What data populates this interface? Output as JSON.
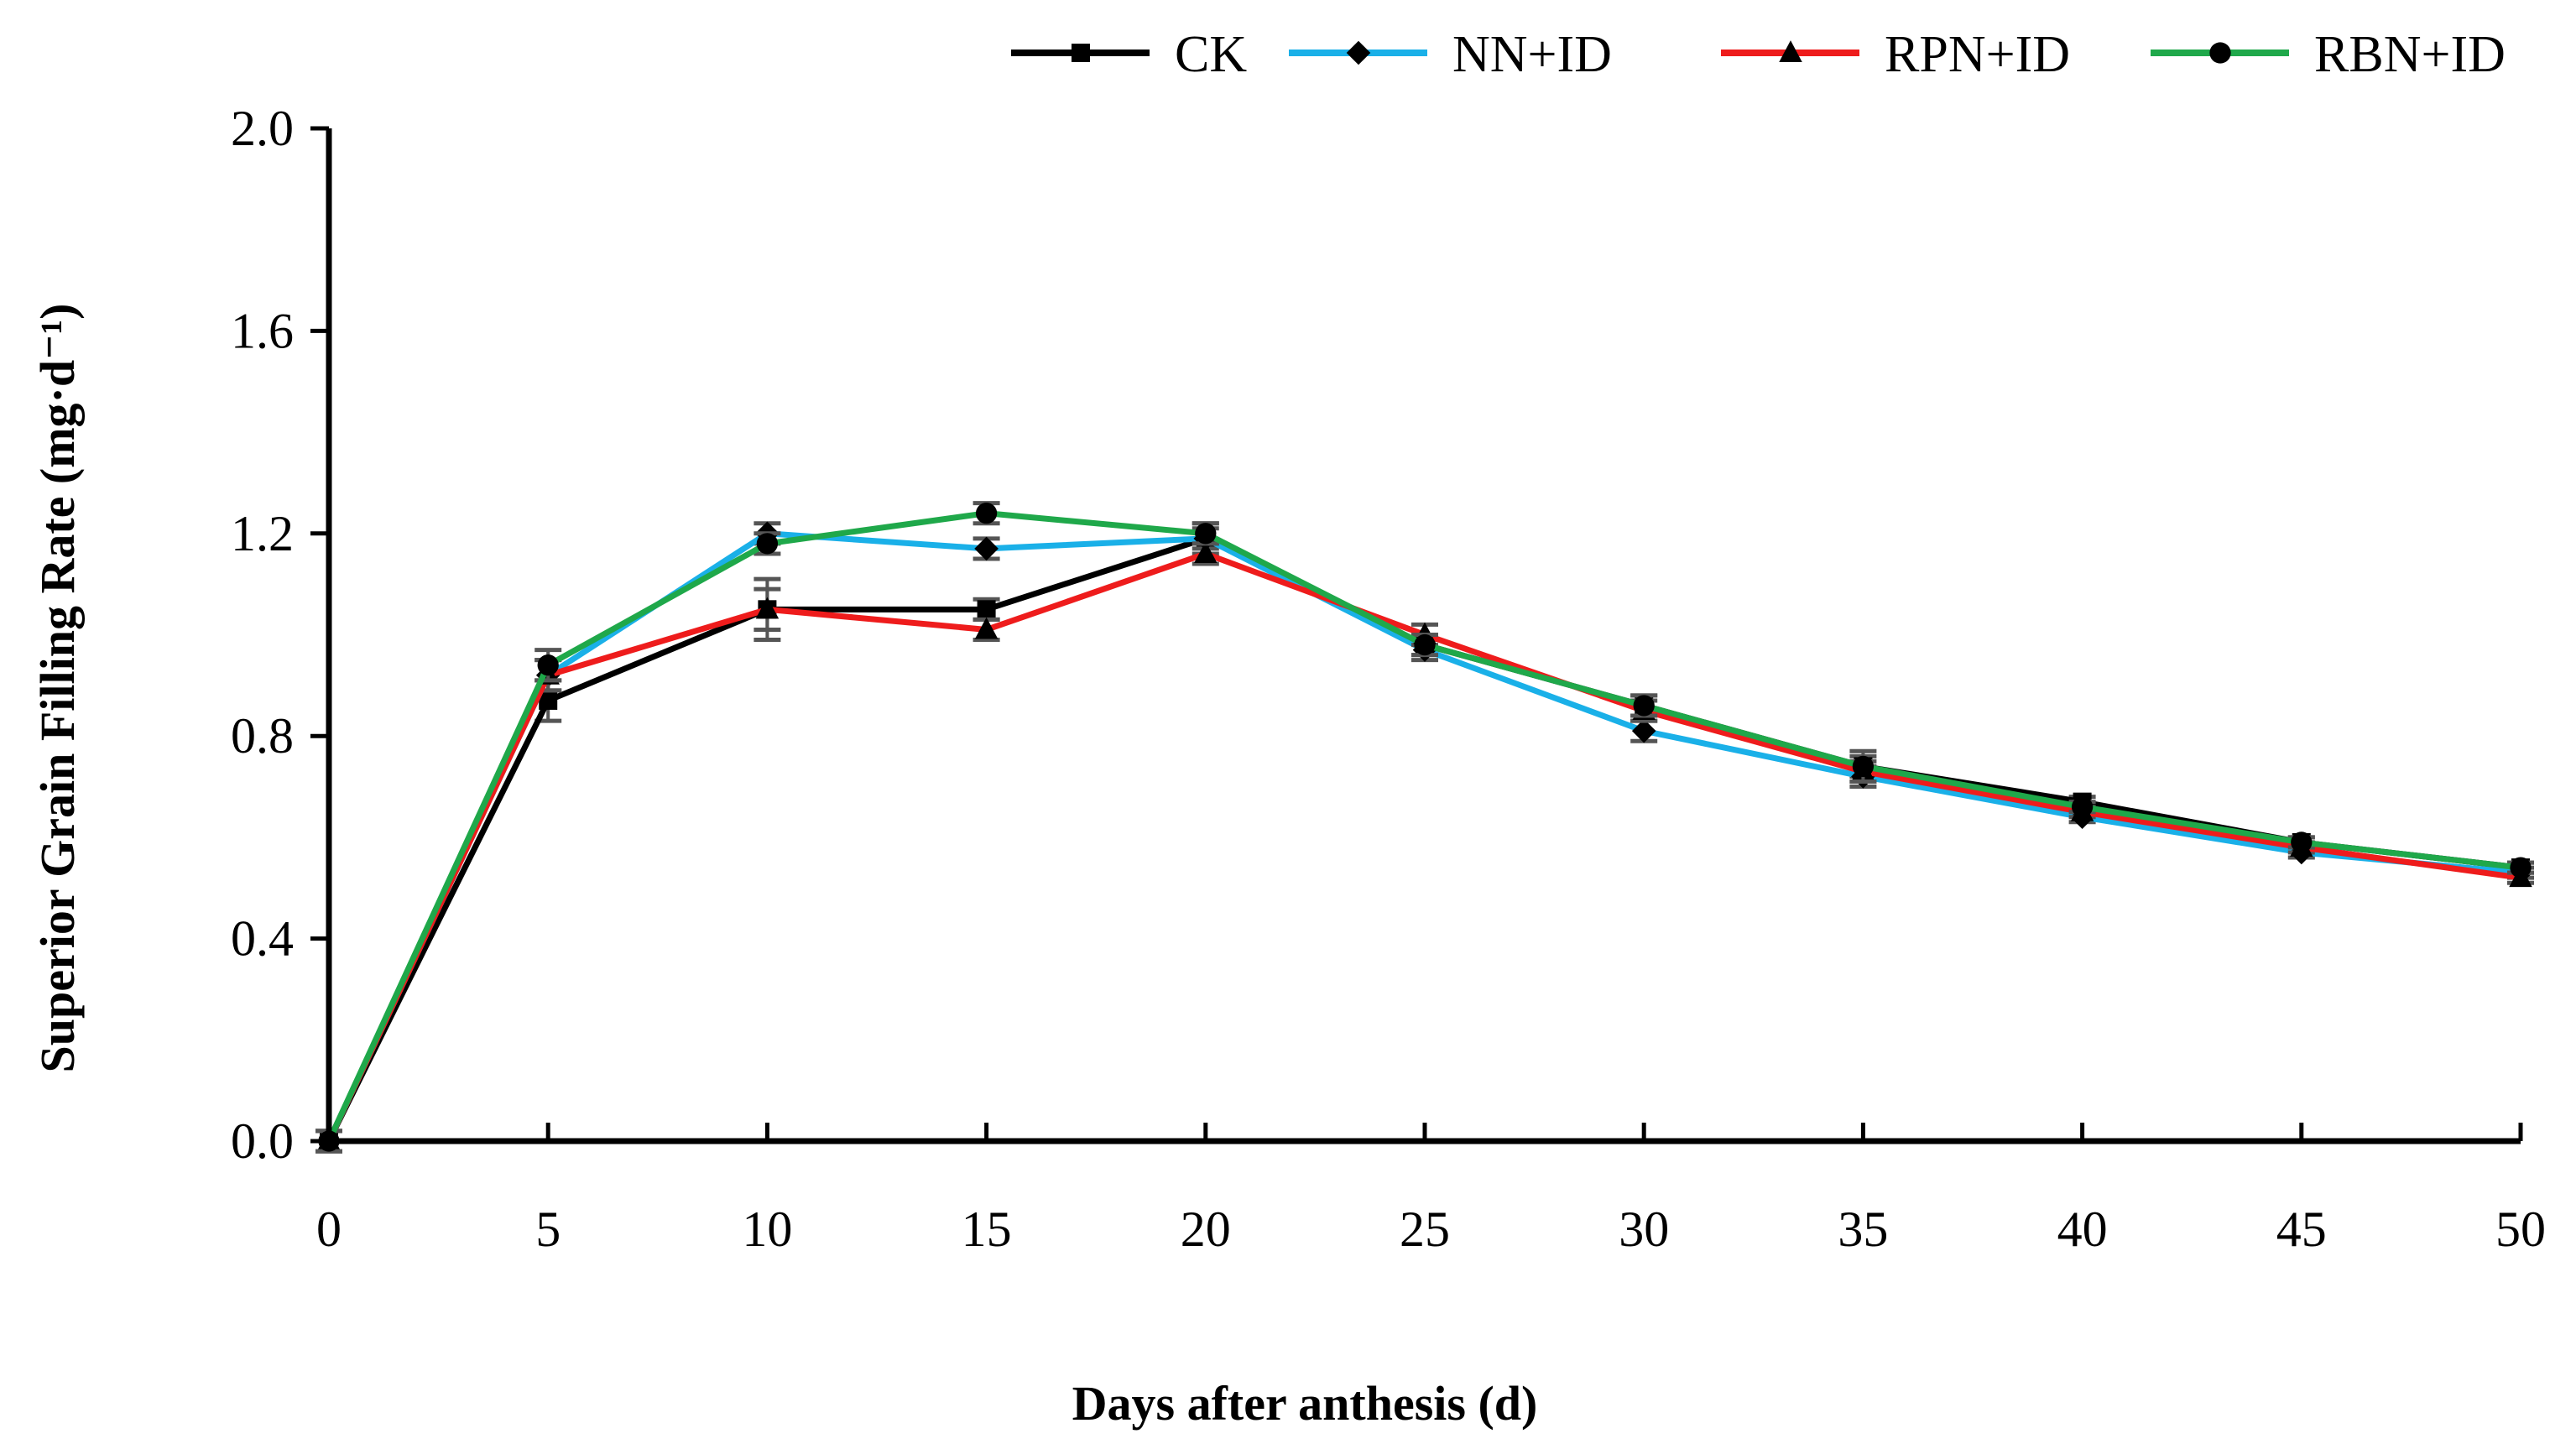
{
  "chart_data": {
    "type": "line",
    "title": "",
    "xlabel": "Days after anthesis (d)",
    "ylabel": "Superior Grain Filling Rate (mg·d⁻¹)",
    "x": [
      0,
      5,
      10,
      15,
      20,
      25,
      30,
      35,
      40,
      45,
      50
    ],
    "xlim": [
      0,
      50
    ],
    "ylim": [
      0,
      2.0
    ],
    "xticks": [
      "0",
      "5",
      "10",
      "15",
      "20",
      "25",
      "30",
      "35",
      "40",
      "45",
      "50"
    ],
    "yticks": [
      "0.0",
      "0.4",
      "0.8",
      "1.2",
      "1.6",
      "2.0"
    ],
    "grid": false,
    "legend_position": "top-right",
    "series": [
      {
        "name": "CK",
        "color": "#000000",
        "marker": "square",
        "values": [
          0.0,
          0.87,
          1.05,
          1.05,
          1.19,
          0.98,
          0.86,
          0.74,
          0.67,
          0.59,
          0.54
        ],
        "errors": [
          0.02,
          0.04,
          0.06,
          0.02,
          0.03,
          0.02,
          0.02,
          0.02,
          0.01,
          0.01,
          0.01
        ]
      },
      {
        "name": "NN+ID",
        "color": "#1ab0e8",
        "marker": "diamond",
        "values": [
          0.0,
          0.92,
          1.2,
          1.17,
          1.19,
          0.97,
          0.81,
          0.72,
          0.64,
          0.57,
          0.53
        ],
        "errors": [
          0.02,
          0.03,
          0.02,
          0.02,
          0.02,
          0.02,
          0.02,
          0.02,
          0.01,
          0.01,
          0.01
        ]
      },
      {
        "name": "RPN+ID",
        "color": "#ee1c1c",
        "marker": "triangle",
        "values": [
          0.0,
          0.92,
          1.05,
          1.01,
          1.16,
          1.0,
          0.85,
          0.73,
          0.65,
          0.58,
          0.52
        ],
        "errors": [
          0.02,
          0.03,
          0.04,
          0.02,
          0.02,
          0.02,
          0.02,
          0.02,
          0.01,
          0.01,
          0.01
        ]
      },
      {
        "name": "RBN+ID",
        "color": "#1fa84a",
        "marker": "circle",
        "values": [
          0.0,
          0.94,
          1.18,
          1.24,
          1.2,
          0.98,
          0.86,
          0.74,
          0.66,
          0.59,
          0.54
        ],
        "errors": [
          0.02,
          0.03,
          0.02,
          0.02,
          0.02,
          0.02,
          0.02,
          0.03,
          0.01,
          0.01,
          0.01
        ]
      }
    ]
  }
}
